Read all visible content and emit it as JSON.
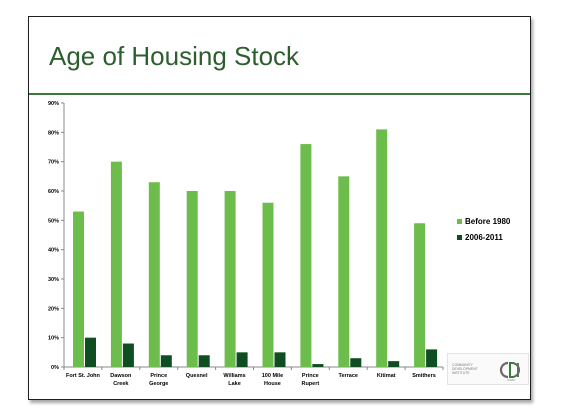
{
  "slide": {
    "title": "Age of Housing Stock",
    "logo_text": "COMMUNITY\nDEVELOPMENT\nINSTITUTE",
    "logo_sub": "UNBC"
  },
  "colors": {
    "before_1980": "#6cbd4b",
    "after_2006": "#0f4d22",
    "title": "#2d5e2e"
  },
  "chart_data": {
    "type": "bar",
    "title": "",
    "xlabel": "",
    "ylabel": "",
    "ylim": [
      0,
      90
    ],
    "yticks": [
      "0%",
      "10%",
      "20%",
      "30%",
      "40%",
      "50%",
      "60%",
      "70%",
      "80%",
      "90%"
    ],
    "categories": [
      [
        "Fort St. John"
      ],
      [
        "Dawson",
        "Creek"
      ],
      [
        "Prince",
        "George"
      ],
      [
        "Quesnel"
      ],
      [
        "Williams",
        "Lake"
      ],
      [
        "100 Mile",
        "House"
      ],
      [
        "Prince",
        "Rupert"
      ],
      [
        "Terrace"
      ],
      [
        "Kitimat"
      ],
      [
        "Smithers"
      ]
    ],
    "series": [
      {
        "name": "Before 1980",
        "values": [
          53,
          70,
          63,
          60,
          60,
          56,
          76,
          65,
          81,
          49
        ]
      },
      {
        "name": "2006-2011",
        "values": [
          10,
          8,
          4,
          4,
          5,
          5,
          1,
          3,
          2,
          6
        ]
      }
    ],
    "legend": "right",
    "grid": false
  }
}
